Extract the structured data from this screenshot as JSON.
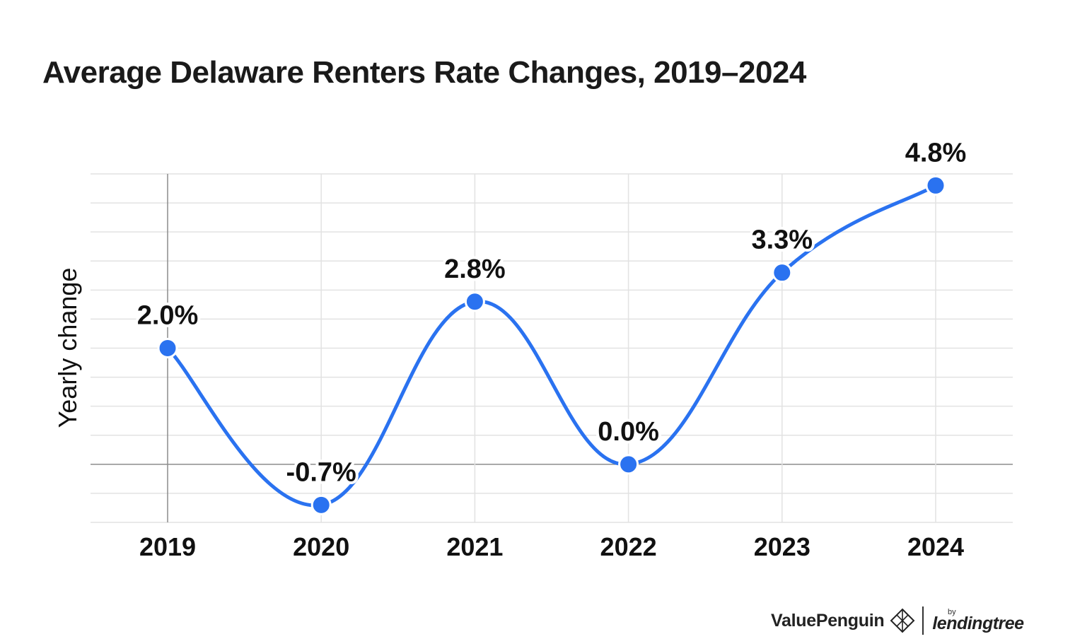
{
  "chart_data": {
    "type": "line",
    "title": "Average Delaware Renters Rate Changes, 2019–2024",
    "ylabel": "Yearly change",
    "xlabel": "",
    "categories": [
      "2019",
      "2020",
      "2021",
      "2022",
      "2023",
      "2024"
    ],
    "values": [
      2.0,
      -0.7,
      2.8,
      0.0,
      3.3,
      4.8
    ],
    "data_labels": [
      "2.0%",
      "-0.7%",
      "2.8%",
      "0.0%",
      "3.3%",
      "4.8%"
    ],
    "ylim": [
      -1.0,
      5.0
    ],
    "grid": true,
    "line_color": "#2a72f0",
    "smooth": true
  },
  "branding": {
    "brand_name": "ValuePenguin",
    "by": "by",
    "parent_name": "lendingtree",
    "icon": "penguin-diamond-icon"
  }
}
